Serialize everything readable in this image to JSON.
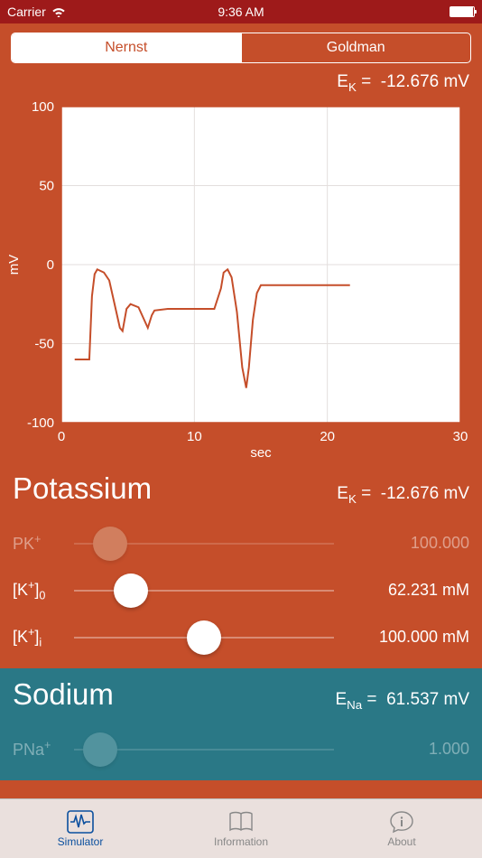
{
  "status": {
    "carrier": "Carrier",
    "time": "9:36 AM"
  },
  "segments": {
    "left": "Nernst",
    "right": "Goldman",
    "active": 0
  },
  "header_ek": {
    "symbol": "E",
    "sub": "K",
    "eq": " = ",
    "value": "-12.676 mV"
  },
  "chart": {
    "type": "line",
    "ylabel": "mV",
    "xlabel": "sec",
    "xlim": [
      0,
      30
    ],
    "ylim": [
      -100,
      100
    ],
    "xticks": [
      0,
      10,
      20,
      30
    ],
    "yticks": [
      -100,
      -50,
      0,
      50,
      100
    ],
    "background_color": "#ffffff",
    "grid_color": "#e3dedd",
    "axis_color": "#c54e2a",
    "line_color": "#c54e2a",
    "text_color": "#ffffff",
    "line_width": 2,
    "label_fontsize": 15,
    "tick_fontsize": 15,
    "data": [
      [
        1.0,
        -60
      ],
      [
        2.1,
        -60
      ],
      [
        2.3,
        -20
      ],
      [
        2.5,
        -6
      ],
      [
        2.7,
        -3
      ],
      [
        3.2,
        -5
      ],
      [
        3.6,
        -10
      ],
      [
        4.0,
        -25
      ],
      [
        4.4,
        -40
      ],
      [
        4.6,
        -42
      ],
      [
        4.9,
        -28
      ],
      [
        5.2,
        -25
      ],
      [
        5.8,
        -27
      ],
      [
        6.5,
        -40
      ],
      [
        6.8,
        -32
      ],
      [
        7.0,
        -29
      ],
      [
        8.0,
        -28
      ],
      [
        10.0,
        -28
      ],
      [
        11.5,
        -28
      ],
      [
        12.0,
        -15
      ],
      [
        12.2,
        -5
      ],
      [
        12.5,
        -3
      ],
      [
        12.8,
        -8
      ],
      [
        13.2,
        -30
      ],
      [
        13.6,
        -65
      ],
      [
        13.9,
        -78
      ],
      [
        14.1,
        -65
      ],
      [
        14.4,
        -35
      ],
      [
        14.7,
        -18
      ],
      [
        15.0,
        -13
      ],
      [
        16.0,
        -13
      ],
      [
        18.0,
        -13
      ],
      [
        21.7,
        -13
      ]
    ]
  },
  "potassium": {
    "title": "Potassium",
    "ek_symbol": "E",
    "ek_sub": "K",
    "ek_eq": " = ",
    "ek_value": "-12.676 mV",
    "rows": [
      {
        "label_html": "PK<sup>+</sup>",
        "value": "100.000",
        "pos_pct": 14,
        "dim": true
      },
      {
        "label_html": "[K<sup>+</sup>]<sub>0</sub>",
        "value": "62.231 mM",
        "pos_pct": 22,
        "dim": false
      },
      {
        "label_html": "[K<sup>+</sup>]<sub>i</sub>",
        "value": "100.000 mM",
        "pos_pct": 50,
        "dim": false
      }
    ]
  },
  "sodium": {
    "title": "Sodium",
    "ek_symbol": "E",
    "ek_sub": "Na",
    "ek_eq": " = ",
    "ek_value": "61.537 mV",
    "rows": [
      {
        "label_html": "PNa<sup>+</sup>",
        "value": "1.000",
        "pos_pct": 10,
        "dim": true
      }
    ]
  },
  "tabs": {
    "items": [
      {
        "label": "Simulator"
      },
      {
        "label": "Information"
      },
      {
        "label": "About"
      }
    ],
    "active": 0,
    "active_color": "#0a4f9e",
    "inactive_color": "#888888"
  }
}
